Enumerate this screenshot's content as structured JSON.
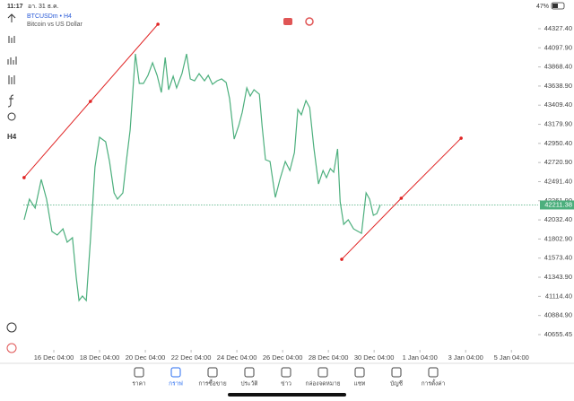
{
  "status_bar": {
    "time": "11:17",
    "date": "อา. 31 ธ.ค.",
    "battery": "47%"
  },
  "toolbar": {
    "timeframe": "H4"
  },
  "chart_data": {
    "type": "line",
    "title": "BTCUSDm • H4",
    "subtitle": "Bitcoin vs US Dollar",
    "color": "#4caf7d",
    "x": [
      -7.8,
      -6.4,
      -4.9,
      -3.3,
      -1.9,
      -0.5,
      0.9,
      2.4,
      3.5,
      4.9,
      5.9,
      6.6,
      7.5,
      8.5,
      9.6,
      10.8,
      12,
      13.6,
      14.6,
      15.8,
      16.7,
      18.1,
      19.1,
      20,
      21.4,
      22.4,
      23.5,
      24.7,
      25.9,
      27.1,
      28.2,
      29.2,
      30.1,
      31.3,
      32.2,
      33.6,
      34.8,
      35.8,
      36.9,
      38.1,
      39.5,
      40.5,
      41.6,
      42.8,
      44,
      45.2,
      46.1,
      47.3,
      48.5,
      49.4,
      50.6,
      51.5,
      52.5,
      53.9,
      54.6,
      55.5,
      56.7,
      58.1,
      59.3,
      60.7,
      61.9,
      63.1,
      64,
      64.9,
      66.1,
      67.1,
      68.2,
      69.4,
      70.6,
      71.5,
      72.5,
      73.4,
      74.4,
      75.1,
      76,
      77.2,
      78.6,
      79.8,
      80.7,
      81.9,
      82.8,
      83.8,
      84.7,
      85.6
    ],
    "values": [
      42033,
      42281,
      42173,
      42518,
      42281,
      41893,
      41850,
      41925,
      41764,
      41818,
      41333,
      41064,
      41118,
      41064,
      41785,
      42668,
      43024,
      42970,
      42733,
      42356,
      42281,
      42356,
      42765,
      43110,
      44025,
      43670,
      43670,
      43767,
      43918,
      43767,
      43562,
      43982,
      43595,
      43756,
      43616,
      43788,
      44025,
      43724,
      43702,
      43788,
      43702,
      43767,
      43659,
      43702,
      43724,
      43681,
      43487,
      43002,
      43164,
      43325,
      43616,
      43519,
      43595,
      43541,
      43164,
      42755,
      42733,
      42302,
      42518,
      42733,
      42625,
      42841,
      43358,
      43293,
      43465,
      43379,
      42895,
      42464,
      42625,
      42539,
      42647,
      42604,
      42884,
      42248,
      41979,
      42033,
      41925,
      41893,
      41871,
      42356,
      42281,
      42087,
      42108,
      42211
    ],
    "xlim": [
      -8,
      127
    ],
    "xticks": [
      {
        "value": 0,
        "label": "16 Dec 04:00"
      },
      {
        "value": 12,
        "label": "18 Dec 04:00"
      },
      {
        "value": 24,
        "label": "20 Dec 04:00"
      },
      {
        "value": 36,
        "label": "22 Dec 04:00"
      },
      {
        "value": 48,
        "label": "24 Dec 04:00"
      },
      {
        "value": 60,
        "label": "26 Dec 04:00"
      },
      {
        "value": 72,
        "label": "28 Dec 04:00"
      },
      {
        "value": 84,
        "label": "30 Dec 04:00"
      },
      {
        "value": 96,
        "label": "1 Jan 04:00"
      },
      {
        "value": 108,
        "label": "3 Jan 04:00"
      },
      {
        "value": 120,
        "label": "5 Jan 04:00"
      }
    ],
    "ylim": [
      40472,
      44521
    ],
    "yticks": [
      {
        "value": 44327.4,
        "label": "44327.40"
      },
      {
        "value": 44097.9,
        "label": "44097.90"
      },
      {
        "value": 43868.4,
        "label": "43868.40"
      },
      {
        "value": 43638.9,
        "label": "43638.90"
      },
      {
        "value": 43409.4,
        "label": "43409.40"
      },
      {
        "value": 43179.9,
        "label": "43179.90"
      },
      {
        "value": 42950.4,
        "label": "42950.40"
      },
      {
        "value": 42720.9,
        "label": "42720.90"
      },
      {
        "value": 42491.4,
        "label": "42491.40"
      },
      {
        "value": 42261.9,
        "label": "42261.90"
      },
      {
        "value": 42032.4,
        "label": "42032.40"
      },
      {
        "value": 41802.9,
        "label": "41802.90"
      },
      {
        "value": 41573.4,
        "label": "41573.40"
      },
      {
        "value": 41343.9,
        "label": "41343.90"
      },
      {
        "value": 41114.4,
        "label": "41114.40"
      },
      {
        "value": 40884.9,
        "label": "40884.90"
      },
      {
        "value": 40655.45,
        "label": "40655.45"
      }
    ],
    "current_price": 42211.38,
    "trendlines": [
      {
        "color": "#e02424",
        "points": [
          {
            "x": -7.8,
            "y": 42540
          },
          {
            "x": 9.6,
            "y": 43455
          },
          {
            "x": 27.3,
            "y": 44381
          }
        ]
      },
      {
        "color": "#e02424",
        "points": [
          {
            "x": 75.5,
            "y": 41559
          },
          {
            "x": 91.1,
            "y": 42292
          },
          {
            "x": 106.8,
            "y": 43013
          }
        ]
      }
    ]
  },
  "tabs": {
    "active": 1,
    "items": [
      "ราคา",
      "กราฟ",
      "การซื้อขาย",
      "ประวัติ",
      "ข่าว",
      "กล่องจดหมาย",
      "แชท",
      "บัญชี",
      "การตั้งค่า"
    ]
  }
}
